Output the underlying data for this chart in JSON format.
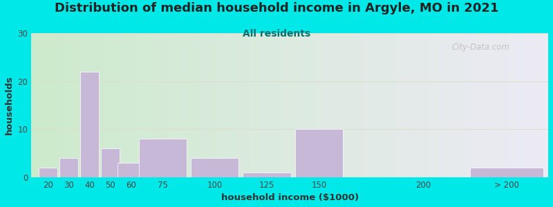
{
  "title": "Distribution of median household income in Argyle, MO in 2021",
  "subtitle": "All residents",
  "xlabel": "household income ($1000)",
  "ylabel": "households",
  "title_fontsize": 13,
  "subtitle_fontsize": 10,
  "subtitle_color": "#007070",
  "bar_color": "#c8b8d8",
  "bar_edgecolor": "#ffffff",
  "background_outer": "#00e8e8",
  "yticks": [
    0,
    10,
    20,
    30
  ],
  "ylim": [
    0,
    30
  ],
  "categories": [
    "20",
    "30",
    "40",
    "50",
    "60",
    "75",
    "100",
    "125",
    "150",
    "200",
    "> 200"
  ],
  "values": [
    2,
    4,
    22,
    6,
    3,
    8,
    4,
    1,
    10,
    0,
    2
  ],
  "x_positions": [
    20,
    30,
    40,
    50,
    60,
    75,
    100,
    125,
    150,
    200,
    240
  ],
  "bar_widths": [
    9,
    9,
    9,
    9,
    13,
    23,
    23,
    23,
    23,
    5,
    35
  ],
  "xlim": [
    12,
    260
  ],
  "xtick_positions": [
    20,
    30,
    40,
    50,
    60,
    75,
    100,
    125,
    150,
    200,
    240
  ],
  "xtick_labels": [
    "20",
    "30",
    "40",
    "50",
    "60",
    "75",
    "100",
    "125",
    "150",
    "200",
    "> 200"
  ],
  "watermark": "City-Data.com",
  "grad_left": "#cceacc",
  "grad_right": "#eceaf4"
}
